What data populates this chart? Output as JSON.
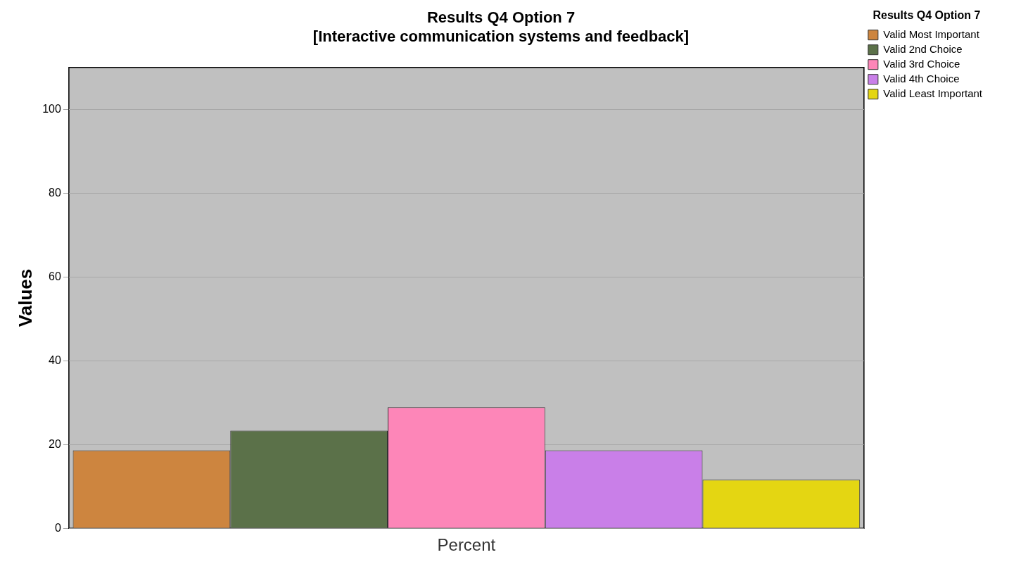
{
  "chart_data": {
    "type": "bar",
    "title": "Results Q4 Option 7",
    "subtitle": "[Interactive communication systems and feedback]",
    "ylabel": "Values",
    "legend_title": "Results Q4 Option 7",
    "categories": [
      "Percent"
    ],
    "series": [
      {
        "name": "Valid Most Important",
        "color": "#cd853f",
        "values": [
          18.6
        ]
      },
      {
        "name": "Valid 2nd Choice",
        "color": "#5b7149",
        "values": [
          23.3
        ]
      },
      {
        "name": "Valid 3rd Choice",
        "color": "#fd86b8",
        "values": [
          28.9
        ]
      },
      {
        "name": "Valid 4th Choice",
        "color": "#c97fe8",
        "values": [
          18.6
        ]
      },
      {
        "name": "Valid Least Important",
        "color": "#e4d612",
        "values": [
          11.6
        ]
      }
    ],
    "ylim": [
      0,
      110
    ],
    "yticks": [
      0,
      20,
      40,
      60,
      80,
      100
    ],
    "grid": "y",
    "legend": "top right"
  }
}
